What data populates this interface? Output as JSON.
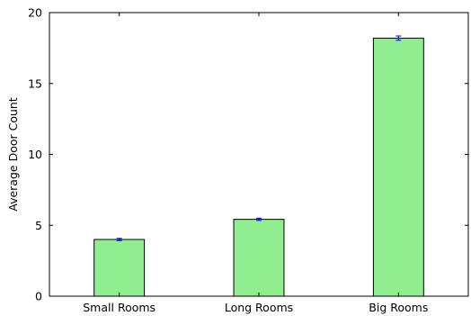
{
  "chart_data": {
    "type": "bar",
    "title": "",
    "xlabel": "",
    "ylabel": "Average Door Count",
    "categories": [
      "Small Rooms",
      "Long Rooms",
      "Big Rooms"
    ],
    "values": [
      4.0,
      5.42,
      18.2
    ],
    "errors": [
      0.08,
      0.08,
      0.15
    ],
    "ylim": [
      0,
      20
    ],
    "yticks": [
      0,
      5,
      10,
      15,
      20
    ],
    "grid": false,
    "legend": "none",
    "colors": {
      "bar_fill": "#90ee90",
      "bar_edge": "#000000",
      "error_bar": "#0000ff",
      "axis": "#000000"
    }
  }
}
